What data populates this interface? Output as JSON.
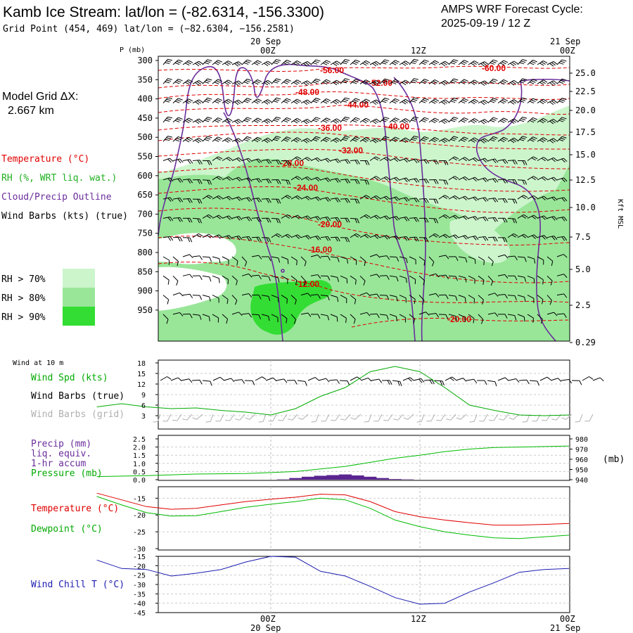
{
  "header": {
    "title": "Kamb Ice Stream:  lat/lon = (-82.6314, -156.3300)",
    "subtitle": "Grid Point (454, 469) lat/lon = (−82.6304, −156.2581)",
    "forecast_label": "AMPS WRF Forecast Cycle:",
    "forecast_cycle": "2025-09-19 / 12  Z",
    "model_grid_label": "Model Grid ΔX:",
    "model_grid_value": "2.667 km"
  },
  "time_axis": {
    "top_dates": [
      "20 Sep",
      "21 Sep"
    ],
    "top_times": [
      "00Z",
      "12Z",
      "00Z"
    ],
    "bottom_times": [
      "00Z",
      "12Z",
      "00Z"
    ],
    "bottom_dates": [
      "20 Sep",
      "21 Sep"
    ]
  },
  "colors": {
    "temperature": "#e00000",
    "rh": "#20b020",
    "cloud": "#6a2d9b",
    "wind": "#000000",
    "wind_grid": "#b0b0b0",
    "rh70": "#ccf5cc",
    "rh80": "#99e699",
    "rh90": "#33dd33",
    "pressure": "#00bb00",
    "dewpoint": "#00bb00",
    "windchill": "#1c1cb0",
    "precip": "#5a2590"
  },
  "legend_upper": {
    "temperature": "Temperature (°C)",
    "rh": "RH (%, WRT liq. wat.)",
    "cloud": "Cloud/Precip Outline",
    "wind": "Wind Barbs (kts) (true)",
    "rh70": "RH > 70%",
    "rh80": "RH > 80%",
    "rh90": "RH > 90%"
  },
  "cross_section": {
    "p_label": "P (mb)",
    "pressure_ticks": [
      "300",
      "350",
      "400",
      "450",
      "500",
      "550",
      "600",
      "650",
      "700",
      "750",
      "800",
      "850",
      "900",
      "950"
    ],
    "height_ticks": [
      "25.0",
      "22.5",
      "20.0",
      "17.5",
      "15.0",
      "12.5",
      "10.0",
      "7.5",
      "5.0",
      "2.5",
      "0.29"
    ],
    "height_axis_label": "Kft MSL",
    "temperature_labels": [
      "-56.00",
      "-60.00",
      "-52.00",
      "-48.00",
      "-44.00",
      "-40.00",
      "-36.00",
      "-32.00",
      "-28.00",
      "-24.00",
      "-20.00",
      "-16.00",
      "-12.00",
      "-20.00"
    ]
  },
  "wind_panel": {
    "header": "Wind at 10 m",
    "spd_label": "Wind Spd (kts)",
    "barbs_true_label": "Wind Barbs (true)",
    "barbs_grid_label": "Wind Barbs (grid)",
    "y_ticks": [
      "18",
      "15",
      "12",
      "9",
      "6",
      "3"
    ]
  },
  "precip_panel": {
    "precip_label": "Precip (mm)",
    "liq_label": "liq. equiv.",
    "accum_label": "1-hr accum",
    "pressure_label": "Pressure (mb)",
    "left_ticks": [
      "2.5",
      "2.0",
      "1.5",
      "1.0",
      "0.5",
      "0.0"
    ],
    "right_ticks": [
      "980",
      "970",
      "960",
      "950",
      "940"
    ],
    "right_unit": "(mb)"
  },
  "temp_panel": {
    "temp_label": "Temperature (°C)",
    "dew_label": "Dewpoint (°C)",
    "y_ticks": [
      "-15",
      "-20",
      "-25",
      "-30"
    ]
  },
  "chill_panel": {
    "label": "Wind Chill T (°C)",
    "y_ticks": [
      "-15",
      "-20",
      "-25",
      "-30",
      "-35",
      "-40",
      "-45"
    ]
  },
  "chart_data": [
    {
      "type": "line",
      "title": "Wind at 10 m",
      "x_hours": [
        -14,
        -12,
        -10,
        -8,
        -6,
        -4,
        -2,
        0,
        2,
        4,
        6,
        8,
        10,
        12,
        14,
        16,
        18,
        20,
        22,
        24
      ],
      "ylim": [
        0,
        18
      ],
      "series": [
        {
          "name": "Wind Spd (kts)",
          "values": [
            5.5,
            6.4,
            5.5,
            5.0,
            5.2,
            4.5,
            4.0,
            3.2,
            5.0,
            8.5,
            11.0,
            15.5,
            17.0,
            15.5,
            11.0,
            6.0,
            4.5,
            3.2,
            3.0,
            3.2
          ]
        }
      ]
    },
    {
      "type": "bar",
      "title": "Precip (mm) liq. equiv. 1-hr accum",
      "x_hours": [
        0,
        1,
        2,
        3,
        4,
        5,
        6,
        7,
        8,
        9,
        10,
        11,
        12
      ],
      "ylim": [
        0,
        2.5
      ],
      "values": [
        0.0,
        0.02,
        0.1,
        0.18,
        0.24,
        0.28,
        0.32,
        0.26,
        0.18,
        0.1,
        0.04,
        0.02,
        0.0
      ]
    },
    {
      "type": "line",
      "title": "Pressure (mb)",
      "x_hours": [
        -14,
        -10,
        -6,
        -2,
        0,
        2,
        4,
        6,
        8,
        10,
        12,
        14,
        16,
        18,
        20,
        22,
        24
      ],
      "ylim": [
        940,
        980
      ],
      "series": [
        {
          "name": "Pressure (mb)",
          "values": [
            943.0,
            944.0,
            945.5,
            946.0,
            947.0,
            948.0,
            950.5,
            953.0,
            957.0,
            961.0,
            964.0,
            967.5,
            970.0,
            971.5,
            972.0,
            972.5,
            973.0
          ]
        }
      ]
    },
    {
      "type": "line",
      "title": "Temperature / Dewpoint",
      "x_hours": [
        -14,
        -12,
        -10,
        -8,
        -6,
        -4,
        -2,
        0,
        2,
        4,
        6,
        8,
        10,
        12,
        14,
        16,
        18,
        20,
        22,
        24
      ],
      "ylim": [
        -30,
        -12
      ],
      "series": [
        {
          "name": "Temperature (°C)",
          "values": [
            -13.5,
            -15.5,
            -17.5,
            -18.3,
            -18.0,
            -17.0,
            -16.0,
            -15.3,
            -14.7,
            -13.8,
            -14.0,
            -16.0,
            -19.0,
            -20.5,
            -21.5,
            -22.3,
            -23.0,
            -23.0,
            -22.8,
            -22.5
          ]
        },
        {
          "name": "Dewpoint (°C)",
          "values": [
            -14.5,
            -17.0,
            -19.3,
            -20.3,
            -20.2,
            -19.0,
            -17.7,
            -16.8,
            -16.0,
            -15.0,
            -15.5,
            -18.0,
            -21.5,
            -23.5,
            -25.0,
            -26.0,
            -26.8,
            -27.0,
            -26.5,
            -26.0
          ]
        }
      ]
    },
    {
      "type": "line",
      "title": "Wind Chill T (°C)",
      "x_hours": [
        -14,
        -12,
        -10,
        -8,
        -6,
        -4,
        -2,
        0,
        2,
        4,
        6,
        8,
        10,
        12,
        14,
        16,
        18,
        20,
        22,
        24
      ],
      "ylim": [
        -45,
        -15
      ],
      "series": [
        {
          "name": "Wind Chill T (°C)",
          "values": [
            -17.0,
            -21.5,
            -22.0,
            -25.5,
            -24.0,
            -22.0,
            -18.0,
            -15.0,
            -15.5,
            -23.0,
            -25.5,
            -31.0,
            -37.0,
            -40.5,
            -40.0,
            -34.0,
            -29.0,
            -23.5,
            -22.0,
            -21.5
          ]
        }
      ]
    }
  ]
}
